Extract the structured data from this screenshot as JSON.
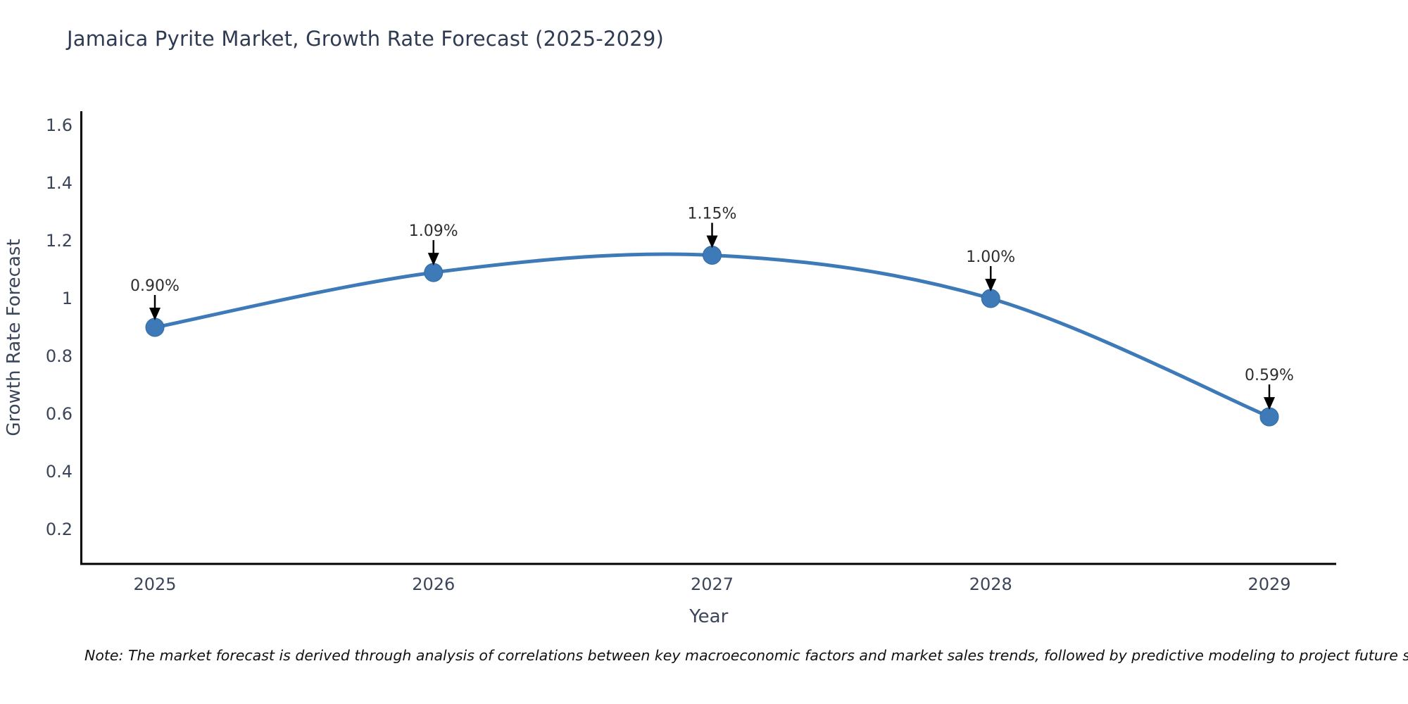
{
  "title": "Jamaica Pyrite Market, Growth Rate Forecast (2025-2029)",
  "note": "Note: The market forecast is derived through analysis of correlations between key macroeconomic factors and market sales trends, followed by predictive modeling to project future sales",
  "chart_data": {
    "type": "line",
    "title": "Jamaica Pyrite Market, Growth Rate Forecast (2025-2029)",
    "xlabel": "Year",
    "ylabel": "Growth Rate Forecast",
    "x": [
      2025,
      2026,
      2027,
      2028,
      2029
    ],
    "values": [
      0.9,
      1.09,
      1.15,
      1.0,
      0.59
    ],
    "point_labels": [
      "0.90%",
      "1.09%",
      "1.15%",
      "1.00%",
      "0.59%"
    ],
    "xtick_labels": [
      "2025",
      "2026",
      "2027",
      "2028",
      "2029"
    ],
    "yticks": [
      0.2,
      0.4,
      0.6,
      0.8,
      1,
      1.2,
      1.4,
      1.6
    ],
    "ytick_labels": [
      "0.2",
      "0.4",
      "0.6",
      "0.8",
      "1",
      "1.2",
      "1.4",
      "1.6"
    ],
    "xlim": [
      2024.73,
      2029.24
    ],
    "ylim": [
      0.083,
      1.646
    ],
    "grid": false,
    "legend": "none",
    "line_shape": "spline",
    "colors": {
      "line": "#3d7ab7",
      "marker": "#3d7ab7",
      "marker_edge": "#2f6aa3",
      "annotation_arrow": "#000000",
      "axis": "#000000",
      "text": "#3c465a",
      "title_text": "#2f3b52"
    }
  }
}
